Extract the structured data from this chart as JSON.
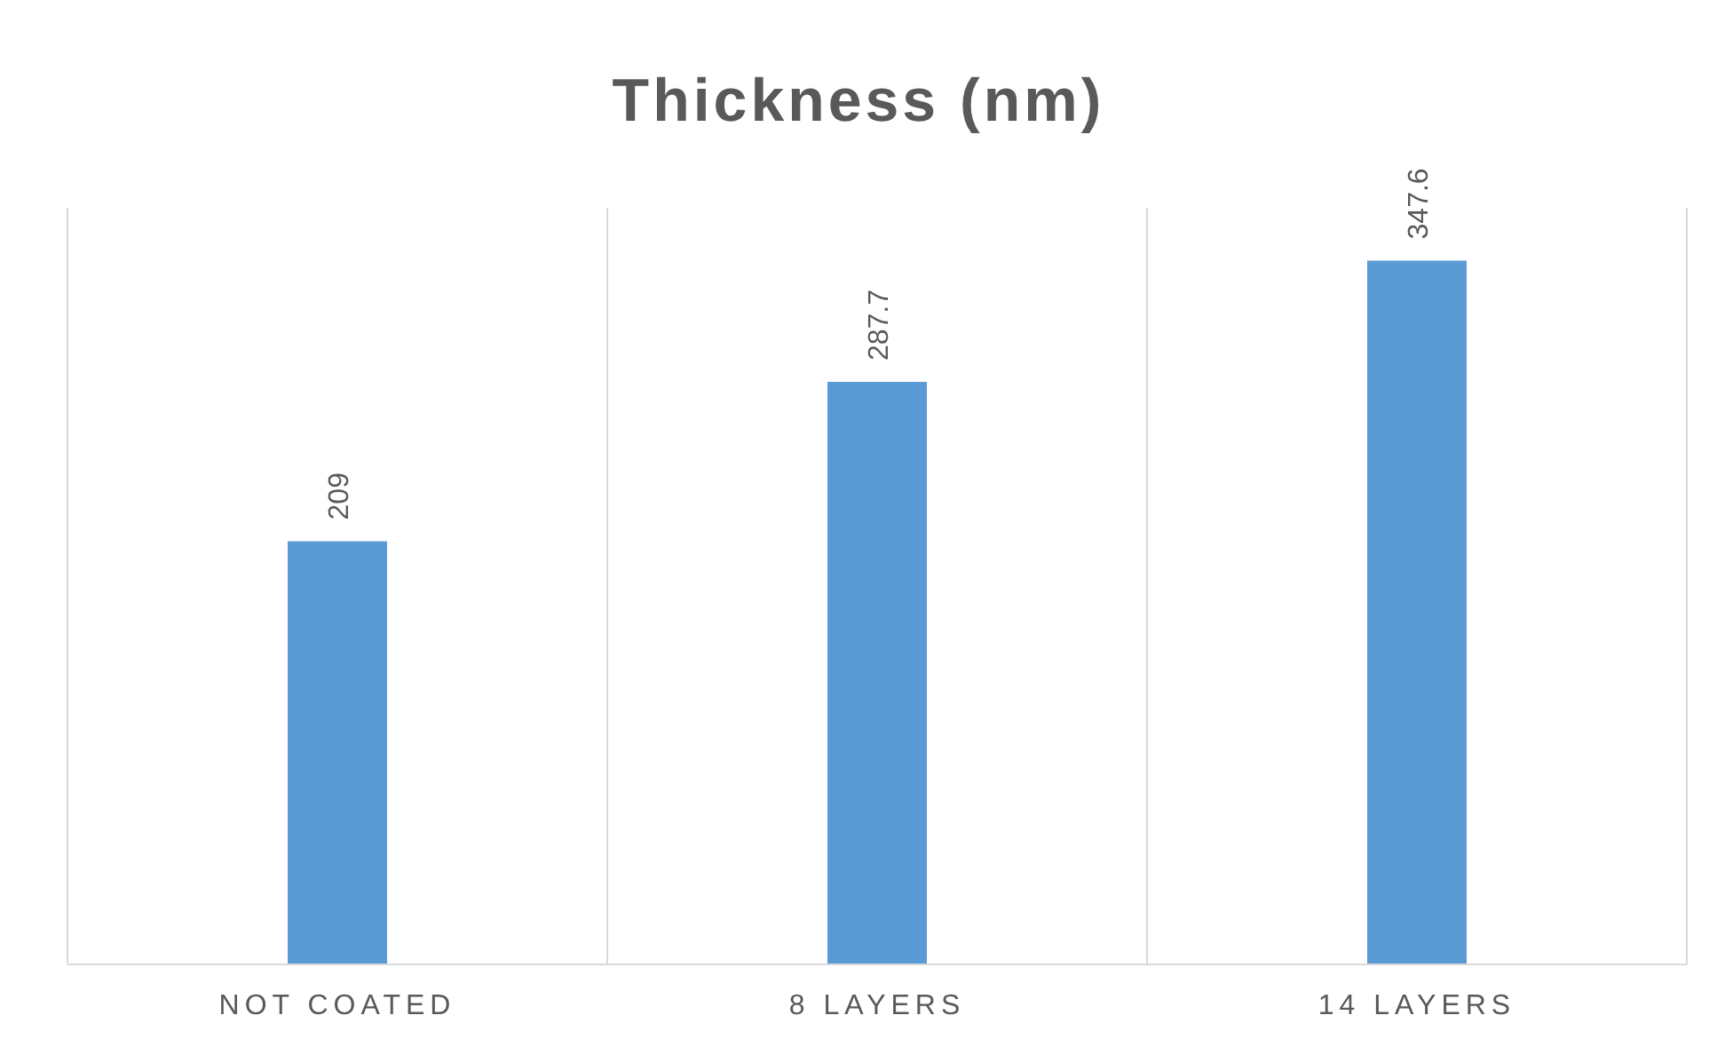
{
  "chart_data": {
    "type": "bar",
    "title": "Thickness (nm)",
    "categories": [
      "NOT COATED",
      "8 LAYERS",
      "14 LAYERS"
    ],
    "values": [
      209,
      287.7,
      347.6
    ],
    "color": "#5b9bd5",
    "data_labels": true,
    "grid": "x"
  }
}
